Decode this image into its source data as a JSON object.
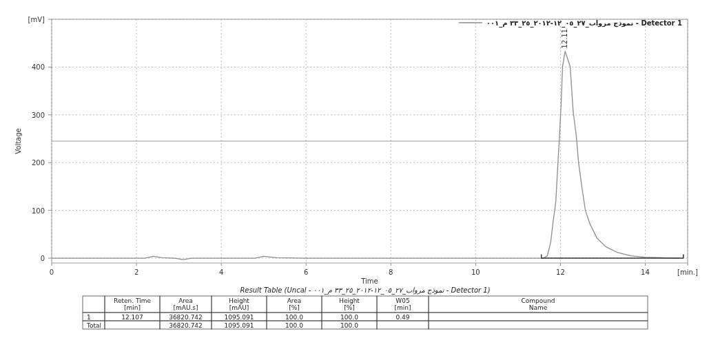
{
  "chart_data": [
    {
      "type": "line",
      "xlabel": "Time",
      "ylabel": "Voltage",
      "xlim": [
        0,
        15
      ],
      "xticks": [
        0,
        2,
        4,
        6,
        8,
        10,
        12,
        14,
        {
          "value": 15,
          "label": "[min.]"
        }
      ],
      "ylim": [
        -10,
        500
      ],
      "yticks": [
        0,
        100,
        200,
        300,
        400,
        {
          "value": 500,
          "label": "[mV]"
        }
      ],
      "grid": true,
      "legend": "top right",
      "series": [
        {
          "name": "نموذج مرواب_٢٧_٠٥_١٢-٢٠١٢_٢٥_٣٣ م_٠٠١ - Detector 1",
          "color": "#8c8c8c",
          "x": [
            0,
            2.2,
            2.4,
            2.6,
            2.9,
            3.1,
            3.3,
            4.8,
            5.0,
            5.3,
            6,
            11.6,
            11.69,
            11.77,
            11.82,
            11.89,
            11.94,
            11.98,
            12.02,
            12.05,
            12.11,
            12.23,
            12.3,
            12.37,
            12.43,
            12.51,
            12.59,
            12.7,
            12.86,
            13.07,
            13.34,
            13.66,
            13.98,
            14.8
          ],
          "values": [
            0,
            0,
            4,
            1,
            0,
            -3,
            0,
            0,
            4,
            1,
            0,
            0,
            5,
            33,
            71,
            118,
            198,
            259,
            330,
            401,
            433,
            401,
            307,
            259,
            198,
            146,
            99,
            71,
            42,
            24,
            12,
            5,
            2,
            0
          ]
        },
        {
          "color": "#333333",
          "x": [
            11.55,
            11.55,
            14.9,
            14.9
          ],
          "values": [
            8,
            0,
            0,
            8
          ]
        }
      ],
      "ref_lines": [
        {
          "axis": "y",
          "value": 245,
          "color": "#999999"
        }
      ],
      "annotations": [
        {
          "text": "12.11",
          "x": 12.11,
          "y": 433
        }
      ]
    },
    {
      "type": "other",
      "title": "Result Table (Uncal - نموذج مرواب_٢٧_٠٥_١٢-٢٠١٢_٢٥_٣٣ م_٠٠١ - Detector 1)",
      "categories": [
        null,
        "Reten. Time [min]",
        "Area [mAU.s]",
        "Height [mAU]",
        "Area [%]",
        "Height [%]",
        "W05 [min]",
        "Compound Name"
      ],
      "cell_labels": [
        [
          "1",
          "12.107",
          "36820.742",
          "1095.091",
          "100.0",
          "100.0",
          "0.49",
          null
        ],
        [
          "Total",
          null,
          "36820.742",
          "1095.091",
          "100.0",
          "100.0",
          null,
          null
        ]
      ]
    }
  ]
}
